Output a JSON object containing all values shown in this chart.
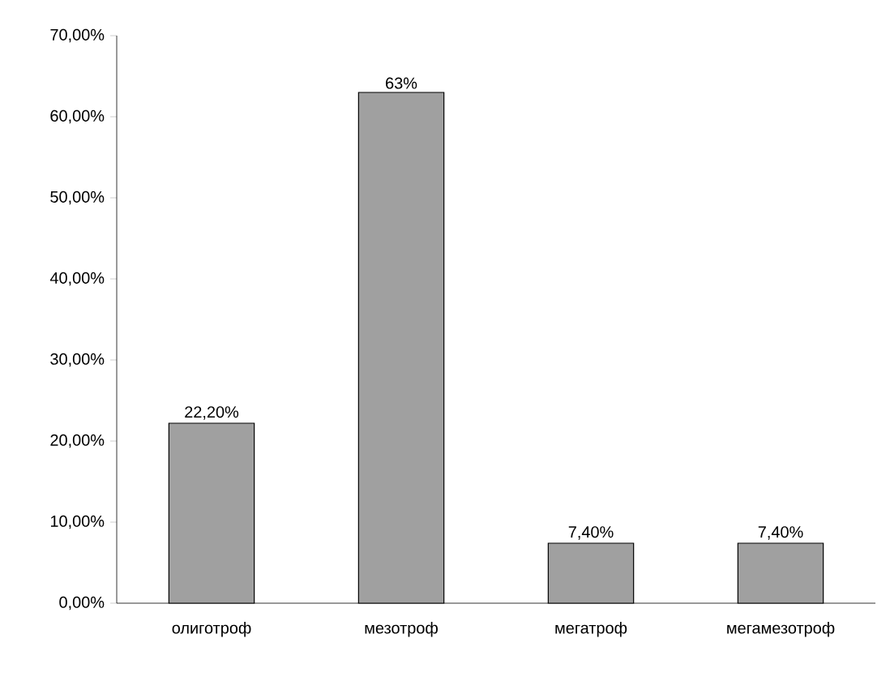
{
  "chart_data": {
    "type": "bar",
    "categories": [
      "олиготроф",
      "мезотроф",
      "мегатроф",
      "мегамезотроф"
    ],
    "values": [
      22.2,
      63,
      7.4,
      7.4
    ],
    "value_labels": [
      "22,20%",
      "63%",
      "7,40%",
      "7,40%"
    ],
    "color": "#a0a0a0",
    "ylim": [
      0,
      70
    ],
    "yticks": [
      {
        "value": 0,
        "label": "0,00%"
      },
      {
        "value": 10,
        "label": "10,00%"
      },
      {
        "value": 20,
        "label": "20,00%"
      },
      {
        "value": 30,
        "label": "30,00%"
      },
      {
        "value": 40,
        "label": "40,00%"
      },
      {
        "value": 50,
        "label": "50,00%"
      },
      {
        "value": 60,
        "label": "60,00%"
      },
      {
        "value": 70,
        "label": "70,00%"
      }
    ],
    "grid": false
  }
}
